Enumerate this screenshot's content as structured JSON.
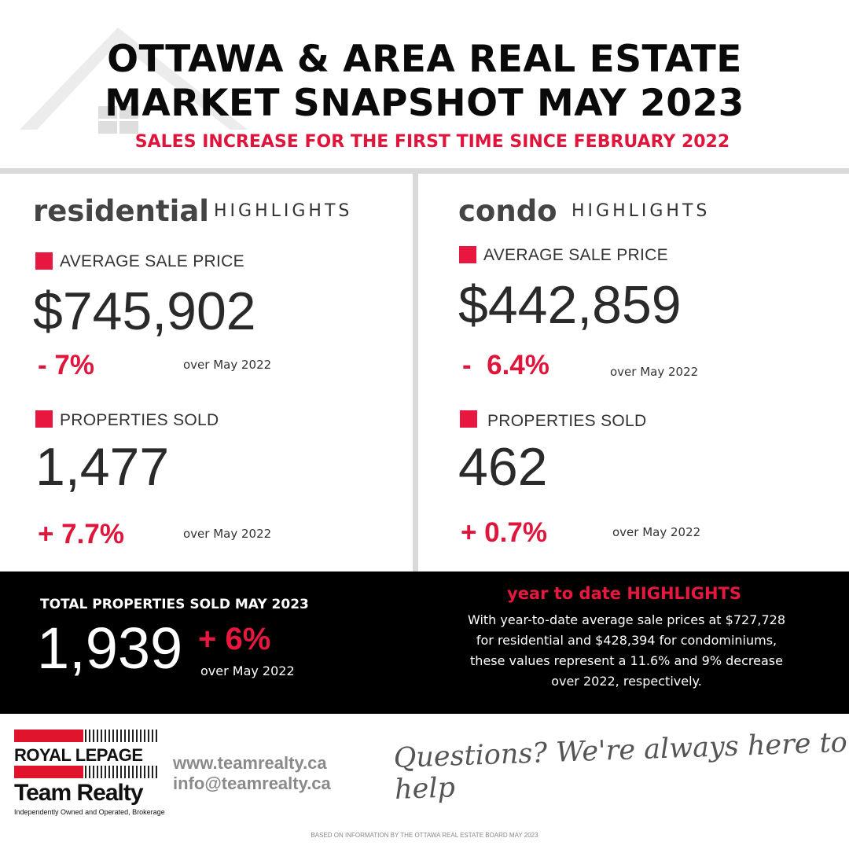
{
  "header": {
    "title_line1": "OTTAWA & AREA REAL ESTATE",
    "title_line2": "MARKET SNAPSHOT MAY 2023",
    "subtitle": "SALES INCREASE FOR THE FIRST TIME SINCE FEBRUARY 2022"
  },
  "residential": {
    "word": "residential",
    "highlights": "HIGHLIGHTS",
    "avg_label": "AVERAGE SALE PRICE",
    "avg_value": "$745,902",
    "avg_change": "- 7%",
    "avg_over": "over May 2022",
    "sold_label": "PROPERTIES SOLD",
    "sold_value": "1,477",
    "sold_change": "+ 7.7%",
    "sold_over": "over May 2022"
  },
  "condo": {
    "word": "condo",
    "highlights": "HIGHLIGHTS",
    "avg_label": "AVERAGE SALE PRICE",
    "avg_value": "$442,859",
    "avg_change": "-  6.4%",
    "avg_over": "over May 2022",
    "sold_label": "PROPERTIES SOLD",
    "sold_value": "462",
    "sold_change": "+ 0.7%",
    "sold_over": "over May 2022"
  },
  "total": {
    "title": "TOTAL PROPERTIES SOLD MAY 2023",
    "value": "1,939",
    "change": "+ 6%",
    "over": "over May 2022"
  },
  "ytd": {
    "title": "year to date HIGHLIGHTS",
    "line1": "With year-to-date average sale prices at $727,728",
    "line2": "for residential and $428,394 for condominiums,",
    "line3": "these values represent a 11.6% and 9% decrease",
    "line4": "over 2022, respectively."
  },
  "footer": {
    "logo_brand": "ROYAL LEPAGE",
    "logo_team": "Team Realty",
    "logo_tagline": "Independently Owned and Operated, Brokerage",
    "website": "www.teamrealty.ca",
    "email": "info@teamrealty.ca",
    "questions": "Questions? We're always here to help",
    "source": "BASED ON INFORMATION BY THE OTTAWA REAL ESTATE BOARD MAY 2023"
  },
  "colors": {
    "accent": "#e0153c",
    "band": "#000000",
    "divider": "#d9d9d9"
  }
}
